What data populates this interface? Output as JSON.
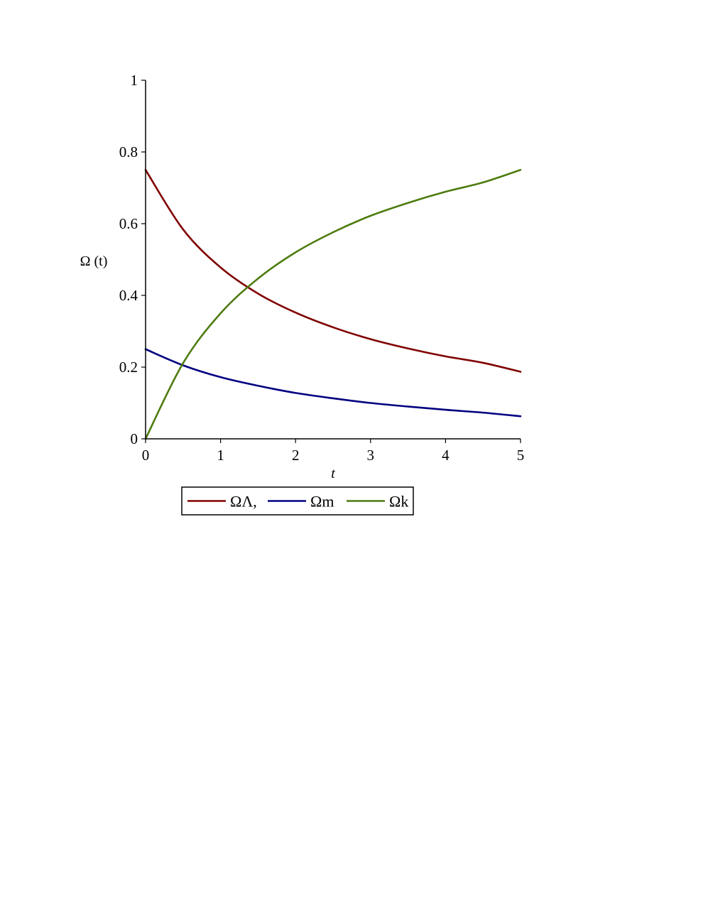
{
  "chart_data": {
    "type": "line",
    "title": "",
    "xlabel": "t",
    "ylabel": "Ω (t)",
    "xlim": [
      0,
      5
    ],
    "ylim": [
      0,
      1
    ],
    "x_ticks": [
      "0",
      "1",
      "2",
      "3",
      "4",
      "5"
    ],
    "y_ticks": [
      "0",
      "0.2",
      "0.4",
      "0.6",
      "0.8",
      "1"
    ],
    "grid": false,
    "legend_position": "bottom",
    "x": [
      0,
      0.5,
      1,
      1.5,
      2,
      2.5,
      3,
      3.5,
      4,
      4.5,
      5
    ],
    "series": [
      {
        "name": "ΩΛ,",
        "color": "#800000",
        "values": [
          0.75,
          0.584,
          0.478,
          0.405,
          0.352,
          0.311,
          0.278,
          0.252,
          0.23,
          0.212,
          0.187
        ]
      },
      {
        "name": "Ωm",
        "color": "#000080",
        "values": [
          0.25,
          0.205,
          0.172,
          0.148,
          0.128,
          0.113,
          0.1,
          0.09,
          0.081,
          0.073,
          0.063
        ]
      },
      {
        "name": "Ωk",
        "color": "#4d7c0f",
        "values": [
          0.0,
          0.211,
          0.35,
          0.447,
          0.52,
          0.576,
          0.622,
          0.658,
          0.689,
          0.715,
          0.75
        ]
      }
    ]
  }
}
